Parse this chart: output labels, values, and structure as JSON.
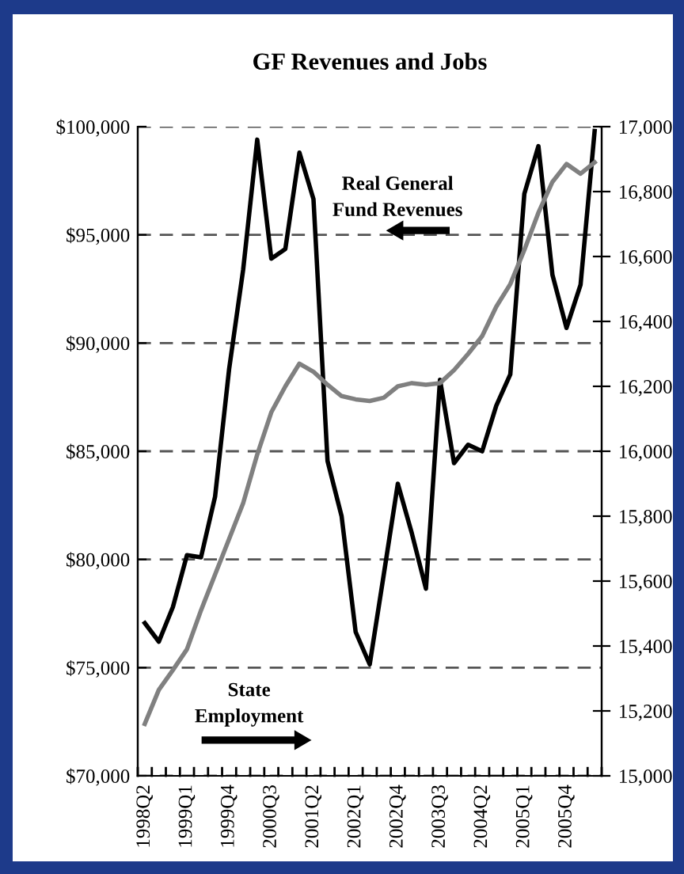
{
  "chart_data": {
    "type": "line",
    "title": "GF Revenues and Jobs",
    "categories": [
      "1998Q2",
      null,
      null,
      "1999Q1",
      null,
      null,
      "1999Q4",
      null,
      null,
      "2000Q3",
      null,
      null,
      "2001Q2",
      null,
      null,
      "2002Q1",
      null,
      null,
      "2002Q4",
      null,
      null,
      "2003Q3",
      null,
      null,
      "2004Q2",
      null,
      null,
      "2005Q1",
      null,
      null,
      "2005Q4",
      null,
      null
    ],
    "series": [
      {
        "color": "#000000",
        "values": [
          77060,
          76200,
          77800,
          80200,
          80100,
          82900,
          88800,
          93400,
          99400,
          93900,
          94350,
          98800,
          96650,
          84550,
          82000,
          76650,
          75150,
          79300,
          83500,
          81200,
          78650,
          88300,
          84450,
          85300,
          85000,
          87100,
          88550,
          96900,
          99100,
          93150,
          90700,
          92700,
          99800
        ]
      },
      {
        "color": "#808080",
        "axis": "y2",
        "values": [
          15160,
          15265,
          15326,
          15390,
          15510,
          15620,
          15730,
          15840,
          15990,
          16120,
          16200,
          16270,
          16245,
          16205,
          16170,
          16160,
          16155,
          16165,
          16200,
          16210,
          16205,
          16210,
          16250,
          16300,
          16355,
          16445,
          16515,
          16620,
          16735,
          16830,
          16885,
          16855,
          16890
        ]
      }
    ],
    "ylim": [
      70000,
      100000
    ],
    "yticks": [
      {
        "value": 70000,
        "label": "$70,000"
      },
      {
        "value": 75000,
        "label": "$75,000"
      },
      {
        "value": 80000,
        "label": "$80,000"
      },
      {
        "value": 85000,
        "label": "$85,000"
      },
      {
        "value": 90000,
        "label": "$90,000"
      },
      {
        "value": 95000,
        "label": "$95,000"
      },
      {
        "value": 100000,
        "label": "$100,000"
      }
    ],
    "y2lim": [
      15000,
      17000
    ],
    "y2ticks": [
      {
        "value": 15000,
        "label": "15,000"
      },
      {
        "value": 15200,
        "label": "15,200"
      },
      {
        "value": 15400,
        "label": "15,400"
      },
      {
        "value": 15600,
        "label": "15,600"
      },
      {
        "value": 15800,
        "label": "15,800"
      },
      {
        "value": 16000,
        "label": "16,000"
      },
      {
        "value": 16200,
        "label": "16,200"
      },
      {
        "value": 16400,
        "label": "16,400"
      },
      {
        "value": 16600,
        "label": "16,600"
      },
      {
        "value": 16800,
        "label": "16,800"
      },
      {
        "value": 17000,
        "label": "17,000"
      }
    ],
    "grid": "y",
    "line_style": "solid",
    "annotations": [
      "Real General\nFund Revenues",
      "State\nEmployment"
    ]
  }
}
